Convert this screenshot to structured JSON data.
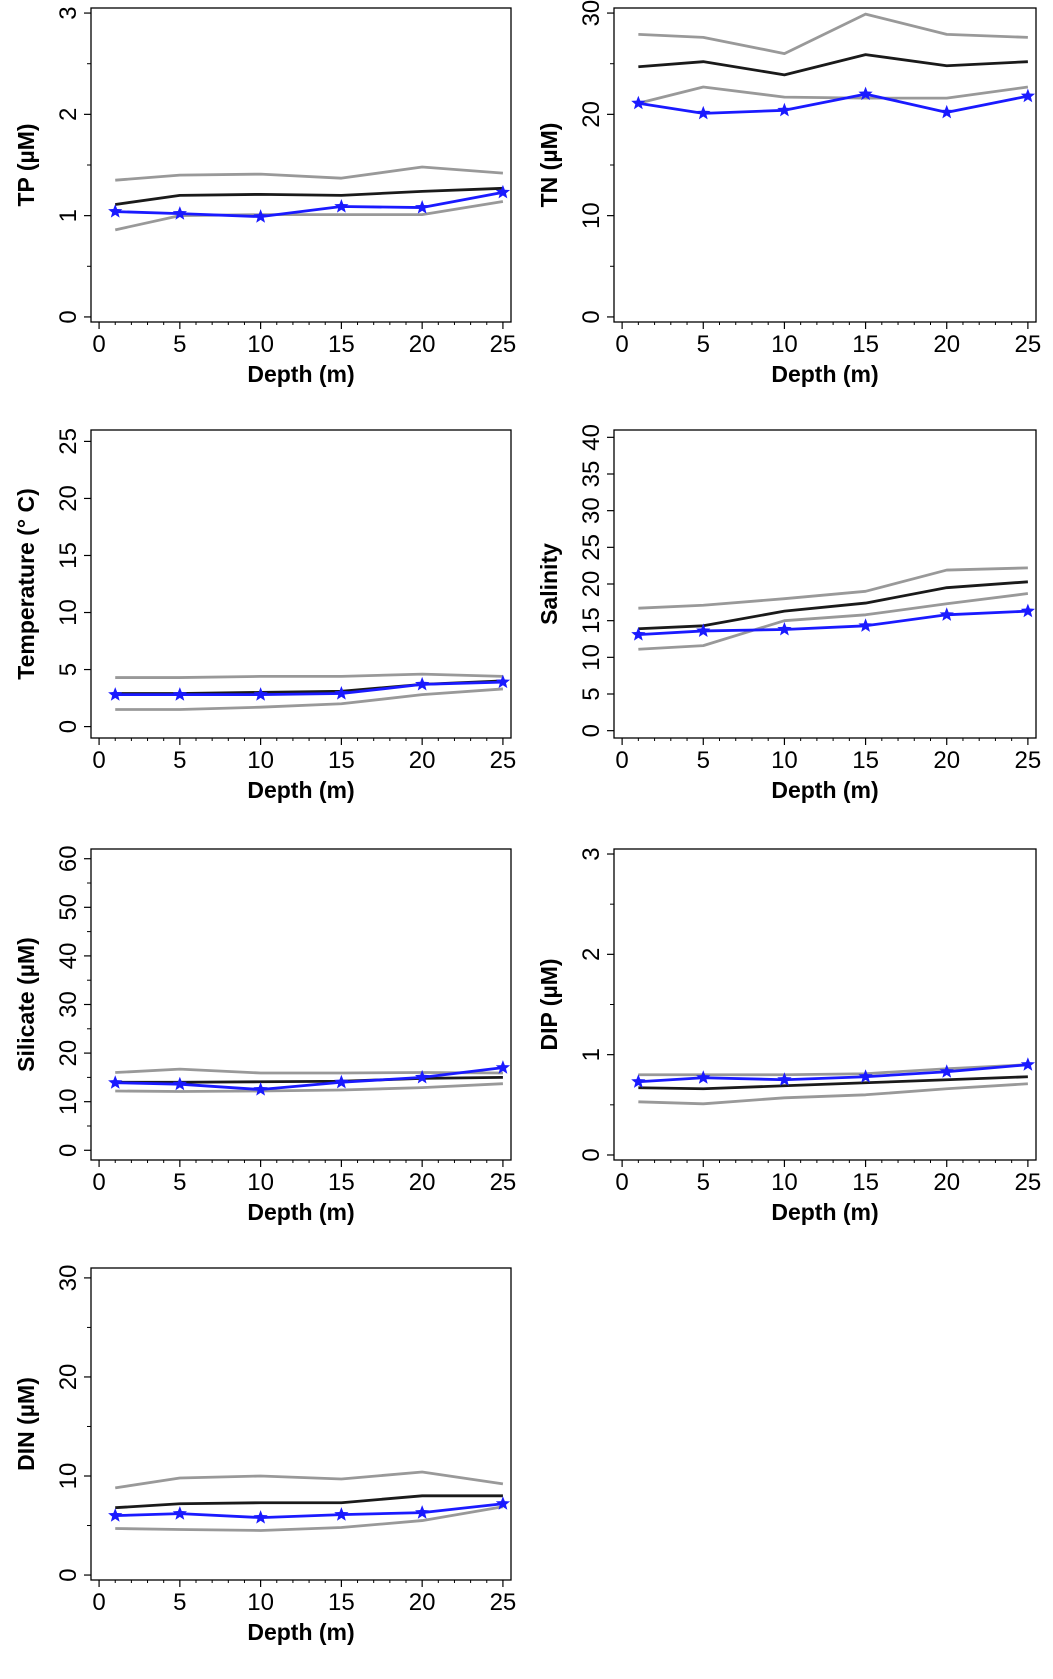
{
  "colors": {
    "upper_bound": "#999999",
    "mean": "#1a1a1a",
    "lower_bound": "#999999",
    "observed": "#1a1aff"
  },
  "marker_icon": "star-icon",
  "chart_data": [
    {
      "type": "line",
      "title": "",
      "xlabel": "Depth (m)",
      "ylabel": "TP (µM)",
      "x": [
        1,
        5,
        10,
        15,
        20,
        25
      ],
      "xticks": [
        0,
        5,
        10,
        15,
        20,
        25
      ],
      "xlim": [
        -0.5,
        25.5
      ],
      "ylim": [
        -0.05,
        3.05
      ],
      "yticks": [
        0,
        1,
        2,
        3
      ],
      "yminor": [
        0.5,
        1.5,
        2.5
      ],
      "grid": false,
      "series": [
        {
          "values": [
            1.35,
            1.4,
            1.41,
            1.37,
            1.48,
            1.42
          ],
          "style": "upper_bound"
        },
        {
          "values": [
            1.11,
            1.2,
            1.21,
            1.2,
            1.24,
            1.27
          ],
          "style": "mean"
        },
        {
          "values": [
            0.86,
            1.0,
            1.01,
            1.01,
            1.01,
            1.14
          ],
          "style": "lower_bound"
        },
        {
          "values": [
            1.04,
            1.02,
            0.99,
            1.09,
            1.08,
            1.23
          ],
          "style": "observed",
          "marker": "star"
        }
      ]
    },
    {
      "type": "line",
      "title": "",
      "xlabel": "Depth (m)",
      "ylabel": "TN (µM)",
      "x": [
        1,
        5,
        10,
        15,
        20,
        25
      ],
      "xticks": [
        0,
        5,
        10,
        15,
        20,
        25
      ],
      "xlim": [
        -0.5,
        25.5
      ],
      "ylim": [
        -0.5,
        30.5
      ],
      "yticks": [
        0,
        10,
        20,
        30
      ],
      "yminor": [
        5,
        15,
        25
      ],
      "grid": false,
      "series": [
        {
          "values": [
            27.9,
            27.6,
            26.0,
            29.9,
            27.9,
            27.6
          ],
          "style": "upper_bound"
        },
        {
          "values": [
            24.7,
            25.2,
            23.9,
            25.9,
            24.8,
            25.2
          ],
          "style": "mean"
        },
        {
          "values": [
            21.1,
            22.7,
            21.7,
            21.6,
            21.6,
            22.7
          ],
          "style": "lower_bound"
        },
        {
          "values": [
            21.1,
            20.1,
            20.4,
            22.0,
            20.2,
            21.8
          ],
          "style": "observed",
          "marker": "star"
        }
      ]
    },
    {
      "type": "line",
      "title": "",
      "xlabel": "Depth (m)",
      "ylabel": "Temperature (° C)",
      "x": [
        1,
        5,
        10,
        15,
        20,
        25
      ],
      "xticks": [
        0,
        5,
        10,
        15,
        20,
        25
      ],
      "xlim": [
        -0.5,
        25.5
      ],
      "ylim": [
        -1.0,
        26.0
      ],
      "yticks": [
        0,
        5,
        10,
        15,
        20,
        25
      ],
      "yminor": [],
      "grid": false,
      "series": [
        {
          "values": [
            4.3,
            4.3,
            4.4,
            4.4,
            4.6,
            4.4
          ],
          "style": "upper_bound"
        },
        {
          "values": [
            2.9,
            2.9,
            3.0,
            3.1,
            3.7,
            4.0
          ],
          "style": "mean"
        },
        {
          "values": [
            1.5,
            1.5,
            1.7,
            2.0,
            2.8,
            3.3
          ],
          "style": "lower_bound"
        },
        {
          "values": [
            2.8,
            2.8,
            2.8,
            2.9,
            3.7,
            3.9
          ],
          "style": "observed",
          "marker": "star"
        }
      ]
    },
    {
      "type": "line",
      "title": "",
      "xlabel": "Depth (m)",
      "ylabel": "Salinity",
      "x": [
        1,
        5,
        10,
        15,
        20,
        25
      ],
      "xticks": [
        0,
        5,
        10,
        15,
        20,
        25
      ],
      "xlim": [
        -0.5,
        25.5
      ],
      "ylim": [
        -1.0,
        41.0
      ],
      "yticks": [
        0,
        5,
        10,
        15,
        20,
        25,
        30,
        35,
        40
      ],
      "yminor": [],
      "grid": false,
      "series": [
        {
          "values": [
            16.7,
            17.1,
            18.0,
            19.0,
            21.9,
            22.2
          ],
          "style": "upper_bound"
        },
        {
          "values": [
            13.9,
            14.3,
            16.3,
            17.4,
            19.5,
            20.3
          ],
          "style": "mean"
        },
        {
          "values": [
            11.1,
            11.6,
            15.0,
            15.8,
            17.3,
            18.7
          ],
          "style": "lower_bound"
        },
        {
          "values": [
            13.1,
            13.6,
            13.8,
            14.3,
            15.8,
            16.3
          ],
          "style": "observed",
          "marker": "star"
        }
      ]
    },
    {
      "type": "line",
      "title": "",
      "xlabel": "Depth (m)",
      "ylabel": "Silicate (µM)",
      "x": [
        1,
        5,
        10,
        15,
        20,
        25
      ],
      "xticks": [
        0,
        5,
        10,
        15,
        20,
        25
      ],
      "xlim": [
        -0.5,
        25.5
      ],
      "ylim": [
        -2.0,
        62.0
      ],
      "yticks": [
        0,
        10,
        20,
        30,
        40,
        50,
        60
      ],
      "yminor": [
        5,
        15,
        25,
        35,
        45,
        55
      ],
      "grid": false,
      "series": [
        {
          "values": [
            16.0,
            16.7,
            15.9,
            15.9,
            16.0,
            15.9
          ],
          "style": "upper_bound"
        },
        {
          "values": [
            14.0,
            14.0,
            14.1,
            14.2,
            14.8,
            15.0
          ],
          "style": "mean"
        },
        {
          "values": [
            12.2,
            12.1,
            12.2,
            12.4,
            12.9,
            13.7
          ],
          "style": "lower_bound"
        },
        {
          "values": [
            13.9,
            13.6,
            12.5,
            14.0,
            15.0,
            17.0
          ],
          "style": "observed",
          "marker": "star"
        }
      ]
    },
    {
      "type": "line",
      "title": "",
      "xlabel": "Depth (m)",
      "ylabel": "DIP (µM)",
      "x": [
        1,
        5,
        10,
        15,
        20,
        25
      ],
      "xticks": [
        0,
        5,
        10,
        15,
        20,
        25
      ],
      "xlim": [
        -0.5,
        25.5
      ],
      "ylim": [
        -0.05,
        3.05
      ],
      "yticks": [
        0,
        1,
        2,
        3
      ],
      "yminor": [
        0.5,
        1.5,
        2.5
      ],
      "grid": false,
      "series": [
        {
          "values": [
            0.8,
            0.8,
            0.8,
            0.81,
            0.86,
            0.9
          ],
          "style": "upper_bound"
        },
        {
          "values": [
            0.67,
            0.66,
            0.69,
            0.72,
            0.75,
            0.78
          ],
          "style": "mean"
        },
        {
          "values": [
            0.53,
            0.51,
            0.57,
            0.6,
            0.66,
            0.71
          ],
          "style": "lower_bound"
        },
        {
          "values": [
            0.73,
            0.77,
            0.75,
            0.78,
            0.83,
            0.9
          ],
          "style": "observed",
          "marker": "star"
        }
      ]
    },
    {
      "type": "line",
      "title": "",
      "xlabel": "Depth (m)",
      "ylabel": "DIN (µM)",
      "x": [
        1,
        5,
        10,
        15,
        20,
        25
      ],
      "xticks": [
        0,
        5,
        10,
        15,
        20,
        25
      ],
      "xlim": [
        -0.5,
        25.5
      ],
      "ylim": [
        -0.5,
        31.0
      ],
      "yticks": [
        0,
        10,
        20,
        30
      ],
      "yminor": [
        5,
        15,
        25
      ],
      "grid": false,
      "series": [
        {
          "values": [
            8.8,
            9.8,
            10.0,
            9.7,
            10.4,
            9.2
          ],
          "style": "upper_bound"
        },
        {
          "values": [
            6.8,
            7.2,
            7.3,
            7.3,
            8.0,
            8.0
          ],
          "style": "mean"
        },
        {
          "values": [
            4.7,
            4.6,
            4.5,
            4.8,
            5.5,
            6.9
          ],
          "style": "lower_bound"
        },
        {
          "values": [
            6.0,
            6.2,
            5.8,
            6.1,
            6.3,
            7.2
          ],
          "style": "observed",
          "marker": "star"
        }
      ]
    }
  ]
}
